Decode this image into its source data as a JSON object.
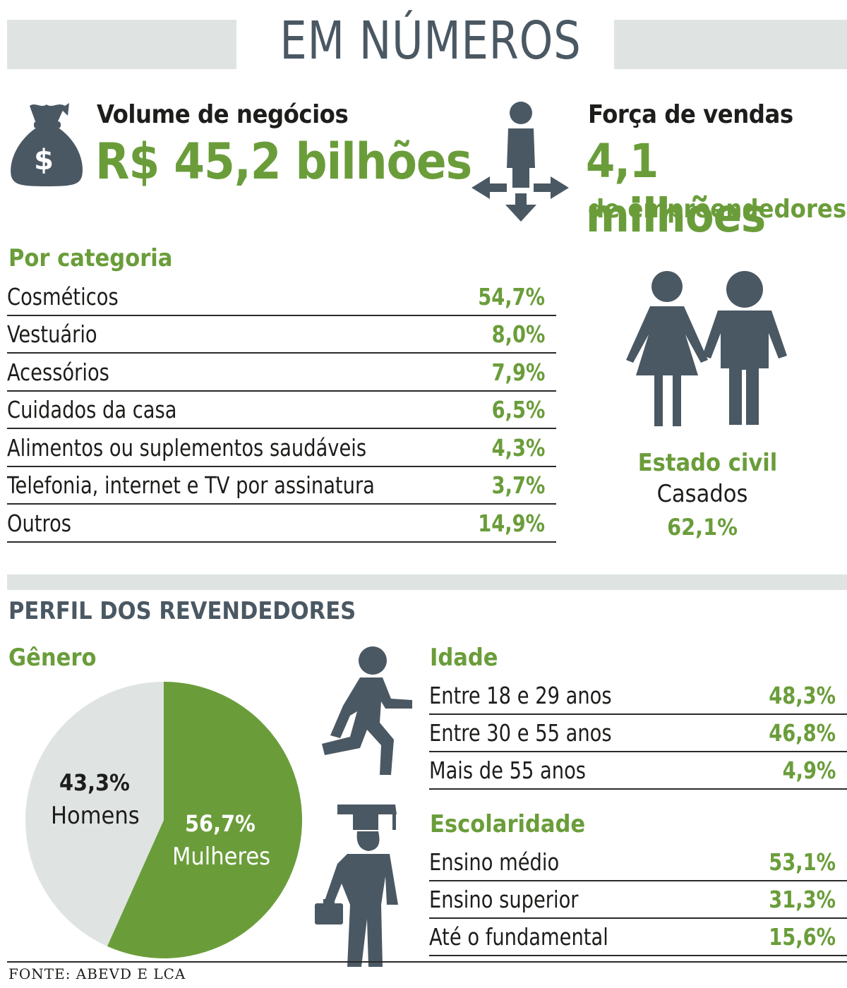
{
  "title": "EM NÚMEROS",
  "volume": {
    "label": "Volume de negócios",
    "value": "R$ 45,2 bilhões",
    "icon": "money-bag-icon"
  },
  "forca": {
    "label": "Força de vendas",
    "value": "4,1 milhões",
    "sub": "de empreendedores",
    "icon": "person-arrows-icon"
  },
  "categoria": {
    "heading": "Por categoria",
    "rows": [
      {
        "label": "Cosméticos",
        "value": "54,7%"
      },
      {
        "label": "Vestuário",
        "value": "8,0%"
      },
      {
        "label": "Acessórios",
        "value": "7,9%"
      },
      {
        "label": "Cuidados da casa",
        "value": "6,5%"
      },
      {
        "label": "Alimentos ou suplementos saudáveis",
        "value": "4,3%"
      },
      {
        "label": "Telefonia, internet e TV por assinatura",
        "value": "3,7%"
      },
      {
        "label": "Outros",
        "value": "14,9%"
      }
    ]
  },
  "estado_civil": {
    "heading": "Estado civil",
    "label": "Casados",
    "value": "62,1%",
    "icon": "couple-icon"
  },
  "perfil": {
    "heading": "PERFIL DOS REVENDEDORES"
  },
  "genero": {
    "heading": "Gênero",
    "homens": {
      "value": "43,3%",
      "label": "Homens"
    },
    "mulheres": {
      "value": "56,7%",
      "label": "Mulheres"
    }
  },
  "idade": {
    "heading": "Idade",
    "icon": "running-person-icon",
    "rows": [
      {
        "label": "Entre 18 e 29 anos",
        "value": "48,3%"
      },
      {
        "label": "Entre 30 e 55 anos",
        "value": "46,8%"
      },
      {
        "label": "Mais de 55 anos",
        "value": "4,9%"
      }
    ]
  },
  "escolaridade": {
    "heading": "Escolaridade",
    "icon": "graduate-icon",
    "rows": [
      {
        "label": "Ensino médio",
        "value": "53,1%"
      },
      {
        "label": "Ensino superior",
        "value": "31,3%"
      },
      {
        "label": "Até o fundamental",
        "value": "15,6%"
      }
    ]
  },
  "source": "FONTE: ABEVD E LCA",
  "colors": {
    "green": "#6a9d3a",
    "slate": "#4a5863",
    "band": "#dfe4e3",
    "pie_gray": "#dfe4e3"
  },
  "chart_data": [
    {
      "type": "bar",
      "title": "Por categoria",
      "categories": [
        "Cosméticos",
        "Vestuário",
        "Acessórios",
        "Cuidados da casa",
        "Alimentos ou suplementos saudáveis",
        "Telefonia, internet e TV por assinatura",
        "Outros"
      ],
      "values": [
        54.7,
        8.0,
        7.9,
        6.5,
        4.3,
        3.7,
        14.9
      ]
    },
    {
      "type": "pie",
      "title": "Gênero",
      "categories": [
        "Mulheres",
        "Homens"
      ],
      "values": [
        56.7,
        43.3
      ]
    },
    {
      "type": "table",
      "title": "Idade",
      "categories": [
        "Entre 18 e 29 anos",
        "Entre 30 e 55 anos",
        "Mais de 55 anos"
      ],
      "values": [
        48.3,
        46.8,
        4.9
      ]
    },
    {
      "type": "table",
      "title": "Escolaridade",
      "categories": [
        "Ensino médio",
        "Ensino superior",
        "Até o fundamental"
      ],
      "values": [
        53.1,
        31.3,
        15.6
      ]
    },
    {
      "type": "table",
      "title": "Estado civil",
      "categories": [
        "Casados"
      ],
      "values": [
        62.1
      ]
    }
  ]
}
